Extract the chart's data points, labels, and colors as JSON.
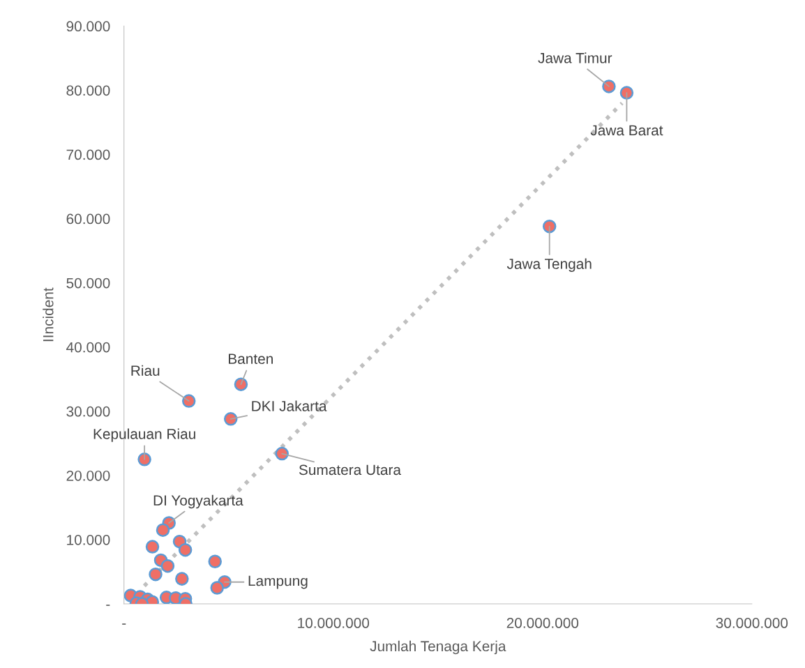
{
  "chart_data": {
    "type": "scatter",
    "xlabel": "Jumlah Tenaga Kerja",
    "ylabel": "IIncident",
    "xlim": [
      0,
      30000000
    ],
    "ylim": [
      0,
      90000
    ],
    "xticks": [
      {
        "value": 0,
        "label": "-"
      },
      {
        "value": 10000000,
        "label": "10.000.000"
      },
      {
        "value": 20000000,
        "label": "20.000.000"
      },
      {
        "value": 30000000,
        "label": "30.000.000"
      }
    ],
    "yticks": [
      {
        "value": 0,
        "label": "-"
      },
      {
        "value": 10000,
        "label": "10.000"
      },
      {
        "value": 20000,
        "label": "20.000"
      },
      {
        "value": 30000,
        "label": "30.000"
      },
      {
        "value": 40000,
        "label": "40.000"
      },
      {
        "value": 50000,
        "label": "50.000"
      },
      {
        "value": 60000,
        "label": "60.000"
      },
      {
        "value": 70000,
        "label": "70.000"
      },
      {
        "value": 80000,
        "label": "80.000"
      },
      {
        "value": 90000,
        "label": "90.000"
      }
    ],
    "grid": false,
    "marker": "circle",
    "series": [
      {
        "color": "#ef6f66",
        "x": [
          23170000,
          24020000,
          20330000,
          5590000,
          3100000,
          5100000,
          980000,
          7550000,
          2150000,
          1860000,
          2660000,
          2930000,
          1360000,
          1760000,
          2090000,
          4350000,
          1510000,
          2770000,
          4810000,
          4450000,
          320000,
          770000,
          1130000,
          1350000,
          590000,
          860000,
          2030000,
          2470000,
          2930000,
          2950000
        ],
        "values": [
          80600,
          79600,
          58800,
          34200,
          31600,
          28800,
          22500,
          23400,
          12600,
          11500,
          9700,
          8400,
          8900,
          6800,
          5900,
          6600,
          4600,
          3900,
          3400,
          2500,
          1300,
          1100,
          700,
          300,
          100,
          0,
          1000,
          900,
          800,
          0
        ]
      },
      {
        "type": "line",
        "color": "#bfbfbf",
        "line_style": "dotted",
        "marker": "none",
        "x": [
          970000,
          23800000
        ],
        "values": [
          2800,
          78000
        ]
      }
    ],
    "annotations": [
      {
        "text": "Jawa Timur",
        "x": 23170000,
        "y": 80600
      },
      {
        "text": "Jawa Barat",
        "x": 24020000,
        "y": 79600
      },
      {
        "text": "Jawa Tengah",
        "x": 20330000,
        "y": 58800
      },
      {
        "text": "Banten",
        "x": 5590000,
        "y": 34200
      },
      {
        "text": "Riau",
        "x": 3100000,
        "y": 31600
      },
      {
        "text": "DKI Jakarta",
        "x": 5100000,
        "y": 28800
      },
      {
        "text": "Kepulauan Riau",
        "x": 980000,
        "y": 22500
      },
      {
        "text": "Sumatera Utara",
        "x": 7550000,
        "y": 23400
      },
      {
        "text": "DI Yogyakarta",
        "x": 2150000,
        "y": 12600
      },
      {
        "text": "Lampung",
        "x": 4810000,
        "y": 3400
      }
    ]
  }
}
